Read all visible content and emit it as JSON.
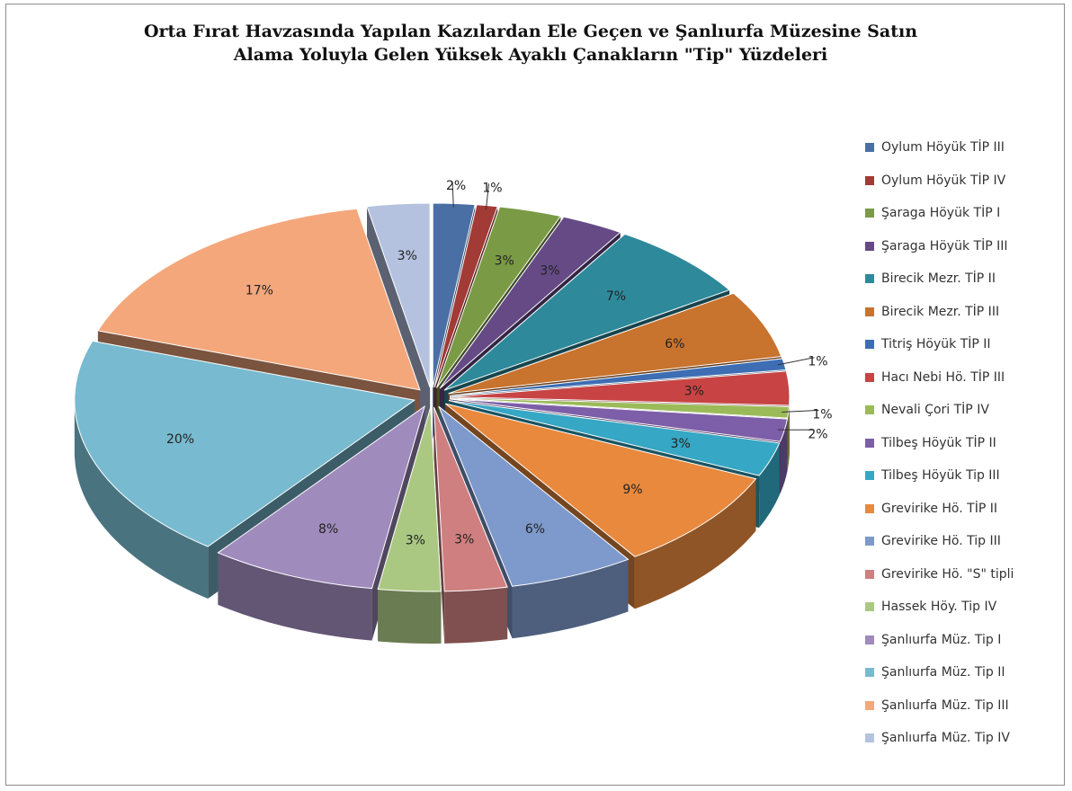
{
  "chart_data": {
    "type": "pie",
    "title_lines": [
      "Orta Fırat Havzasında Yapılan Kazılardan Ele Geçen ve Şanlıurfa Müzesine Satın",
      "Alama Yoluyla Gelen Yüksek Ayaklı Çanakların \"Tip\" Yüzdeleri"
    ],
    "legend_position": "right",
    "exploded": true,
    "three_d": true,
    "slices": [
      {
        "label": "Oylum Höyük TİP III",
        "value": 2,
        "display": "2%",
        "color": "#4A6FA5"
      },
      {
        "label": "Oylum Höyük TİP IV",
        "value": 1,
        "display": "1%",
        "color": "#A23A36"
      },
      {
        "label": "Şaraga Höyük TİP I",
        "value": 3,
        "display": "3%",
        "color": "#7A9A45"
      },
      {
        "label": "Şaraga Höyük TİP III",
        "value": 3,
        "display": "3%",
        "color": "#664A86"
      },
      {
        "label": "Birecik Mezr. TİP II",
        "value": 7,
        "display": "7%",
        "color": "#2E8A9B"
      },
      {
        "label": "Birecik Mezr. TİP III",
        "value": 6,
        "display": "6%",
        "color": "#C8732E"
      },
      {
        "label": "Titriş Höyük TİP II",
        "value": 1,
        "display": "1%",
        "color": "#3D6EB4"
      },
      {
        "label": "Hacı Nebi Hö. TİP III",
        "value": 3,
        "display": "3%",
        "color": "#C84444"
      },
      {
        "label": "Nevali Çori TİP IV",
        "value": 1,
        "display": "1%",
        "color": "#9BBB59"
      },
      {
        "label": "Tilbeş Höyük TİP II",
        "value": 2,
        "display": "2%",
        "color": "#7D5EA8"
      },
      {
        "label": "Tilbeş Höyük Tip III",
        "value": 3,
        "display": "3%",
        "color": "#36A7C4"
      },
      {
        "label": "Grevirike Hö. TİP II",
        "value": 9,
        "display": "9%",
        "color": "#E8893E"
      },
      {
        "label": "Grevirike Hö. Tip III",
        "value": 6,
        "display": "6%",
        "color": "#7E9ACC"
      },
      {
        "label": "Grevirike Hö. \"S\" tipli",
        "value": 3,
        "display": "3%",
        "color": "#CF7F7F"
      },
      {
        "label": "Hassek Höy. Tip IV",
        "value": 3,
        "display": "3%",
        "color": "#ABC882"
      },
      {
        "label": "Şanlıurfa Müz. Tip I",
        "value": 8,
        "display": "8%",
        "color": "#9F8BBC"
      },
      {
        "label": "Şanlıurfa Müz. Tip II",
        "value": 20,
        "display": "20%",
        "color": "#78BACF"
      },
      {
        "label": "Şanlıurfa Müz. Tip III",
        "value": 17,
        "display": "17%",
        "color": "#F4A77B"
      },
      {
        "label": "Şanlıurfa Müz. Tip IV",
        "value": 3,
        "display": "3%",
        "color": "#B5C2DF"
      }
    ]
  }
}
